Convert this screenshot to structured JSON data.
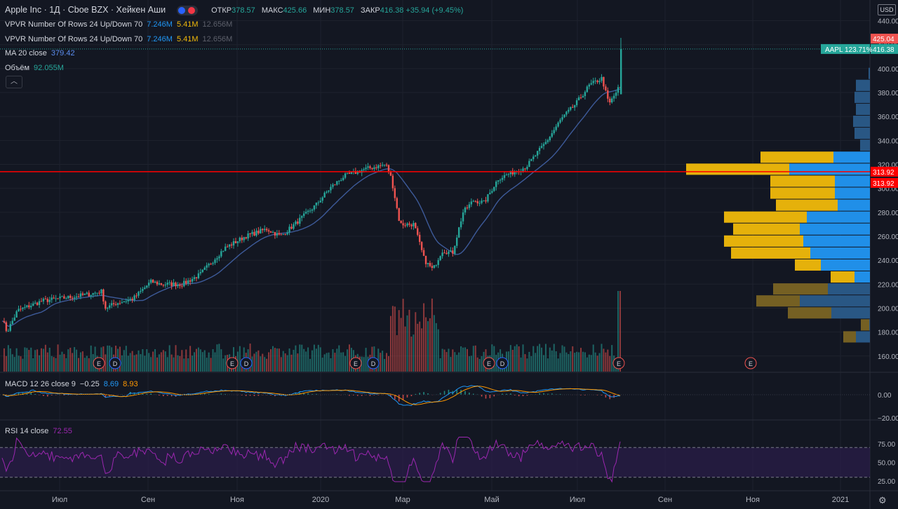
{
  "header": {
    "symbol": "Apple Inc · 1Д · Cboe BZX · Хейкен Аши",
    "open_label": "ОТКР",
    "open": "378.57",
    "high_label": "МАКС",
    "high": "425.66",
    "low_label": "МИН",
    "low": "378.57",
    "close_label": "ЗАКР",
    "close": "416.38",
    "change": "+35.94 (+9.45%)"
  },
  "indicators": {
    "vpvr1": {
      "label": "VPVR Number Of Rows 24 Up/Down 70",
      "up": "7.246M",
      "down": "5.41M",
      "total": "12.656M"
    },
    "vpvr2": {
      "label": "VPVR Number Of Rows 24 Up/Down 70",
      "up": "7.246M",
      "down": "5.41M",
      "total": "12.656M"
    },
    "ma": {
      "label": "MA 20 close",
      "value": "379.42"
    },
    "volume": {
      "label": "Объём",
      "value": "92.055M"
    },
    "macd": {
      "label": "MACD 12 26 close 9",
      "hist": "−0.25",
      "macd": "8.69",
      "signal": "8.93"
    },
    "rsi": {
      "label": "RSI 14 close",
      "value": "72.55"
    }
  },
  "currency": "USD",
  "colors": {
    "up": "#26a69a",
    "down": "#ef5350",
    "ma": "#3d5a99",
    "rsi": "#9c27b0",
    "vol_up": "#2962ff",
    "vol_down": "#f0b90b",
    "hline": "#ff0000"
  },
  "chart_data": {
    "type": "candlestick",
    "price_axis": {
      "ticks": [
        "440.00",
        "420.00",
        "400.00",
        "380.00",
        "360.00",
        "340.00",
        "320.00",
        "300.00",
        "280.00",
        "260.00",
        "240.00",
        "220.00",
        "200.00",
        "180.00",
        "160.00"
      ],
      "range": [
        147,
        445
      ]
    },
    "time_axis": [
      "Июл",
      "Сен",
      "Ноя",
      "2020",
      "Мар",
      "Май",
      "Июл",
      "Сен",
      "Ноя",
      "2021"
    ],
    "price_labels": {
      "high": "425.04",
      "last": "416.38",
      "last_tag": "AAPL 123.71%",
      "hline": "313.92",
      "hline2": "313.92"
    },
    "hline_value": 313.92,
    "anchors": [
      [
        0,
        196
      ],
      [
        10,
        180
      ],
      [
        25,
        198
      ],
      [
        60,
        206
      ],
      [
        110,
        210
      ],
      [
        130,
        212
      ],
      [
        145,
        214
      ],
      [
        150,
        200
      ],
      [
        165,
        204
      ],
      [
        190,
        208
      ],
      [
        215,
        222
      ],
      [
        230,
        220
      ],
      [
        260,
        220
      ],
      [
        285,
        228
      ],
      [
        320,
        250
      ],
      [
        350,
        260
      ],
      [
        380,
        266
      ],
      [
        400,
        260
      ],
      [
        420,
        270
      ],
      [
        450,
        286
      ],
      [
        470,
        300
      ],
      [
        490,
        310
      ],
      [
        520,
        316
      ],
      [
        550,
        320
      ],
      [
        558,
        308
      ],
      [
        570,
        270
      ],
      [
        590,
        270
      ],
      [
        605,
        240
      ],
      [
        617,
        232
      ],
      [
        630,
        248
      ],
      [
        645,
        246
      ],
      [
        660,
        280
      ],
      [
        675,
        290
      ],
      [
        690,
        288
      ],
      [
        710,
        308
      ],
      [
        725,
        312
      ],
      [
        750,
        318
      ],
      [
        780,
        340
      ],
      [
        800,
        358
      ],
      [
        820,
        370
      ],
      [
        840,
        386
      ],
      [
        858,
        392
      ],
      [
        868,
        370
      ],
      [
        872,
        374
      ],
      [
        882,
        384
      ]
    ],
    "events": [
      {
        "label": "E",
        "x": 141
      },
      {
        "label": "D",
        "x": 164
      },
      {
        "label": "E",
        "x": 331
      },
      {
        "label": "D",
        "x": 351
      },
      {
        "label": "E",
        "x": 507
      },
      {
        "label": "D",
        "x": 532
      },
      {
        "label": "E",
        "x": 697
      },
      {
        "label": "D",
        "x": 716
      },
      {
        "label": "E",
        "x": 882
      },
      {
        "label": "E",
        "x": 1070
      }
    ],
    "volume_profile": [
      {
        "price": 176,
        "up": 18,
        "down": 20
      },
      {
        "price": 186,
        "up": 12,
        "down": 1
      },
      {
        "price": 196,
        "up": 62,
        "down": 55
      },
      {
        "price": 206,
        "up": 62,
        "down": 100
      },
      {
        "price": 216,
        "up": 78,
        "down": 60
      },
      {
        "price": 226,
        "up": 34,
        "down": 22
      },
      {
        "price": 236,
        "up": 37,
        "down": 70
      },
      {
        "price": 246,
        "up": 113,
        "down": 85
      },
      {
        "price": 256,
        "up": 113,
        "down": 95
      },
      {
        "price": 266,
        "up": 95,
        "down": 100
      },
      {
        "price": 276,
        "up": 118,
        "down": 90
      },
      {
        "price": 286,
        "up": 88,
        "down": 46
      },
      {
        "price": 296,
        "up": 92,
        "down": 50
      },
      {
        "price": 306,
        "up": 92,
        "down": 50
      },
      {
        "price": 316,
        "up": 147,
        "down": 115
      },
      {
        "price": 326,
        "up": 104,
        "down": 52
      },
      {
        "price": 336,
        "up": 0,
        "down": 14
      },
      {
        "price": 346,
        "up": 0,
        "down": 22
      },
      {
        "price": 356,
        "up": 0,
        "down": 24
      },
      {
        "price": 366,
        "up": 0,
        "down": 20
      },
      {
        "price": 376,
        "up": 0,
        "down": 22
      },
      {
        "price": 386,
        "up": 0,
        "down": 20
      },
      {
        "price": 396,
        "up": 0,
        "down": 2
      }
    ],
    "macd_axis": [
      "0.00",
      "−20.00"
    ],
    "rsi_axis": [
      "75.00",
      "50.00",
      "25.00"
    ]
  }
}
